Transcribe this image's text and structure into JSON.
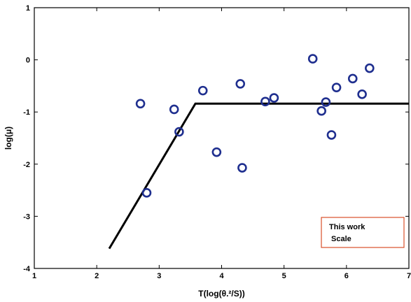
{
  "chart_data": {
    "type": "scatter",
    "xlabel": "T(log(θ.²/S))",
    "ylabel": "log(μ)",
    "xlim": [
      1,
      7
    ],
    "ylim": [
      -4,
      1
    ],
    "xticks": [
      "1",
      "2",
      "3",
      "4",
      "5",
      "6",
      "7"
    ],
    "yticks": [
      "1",
      "0",
      "-1",
      "-2",
      "-3",
      "-4"
    ],
    "xtick_values": [
      1,
      2,
      3,
      4,
      5,
      6,
      7
    ],
    "ytick_values": [
      1,
      0,
      -1,
      -2,
      -3,
      -4
    ],
    "grid": false,
    "legend": {
      "placement": "bottom-right",
      "lines": [
        "This work",
        "Scale"
      ]
    },
    "series": [
      {
        "kind": "scatter",
        "color": "#1f2f8f",
        "marker": "open-circle",
        "points": [
          {
            "x": 2.7,
            "y": -0.84
          },
          {
            "x": 2.8,
            "y": -2.55
          },
          {
            "x": 3.24,
            "y": -0.95
          },
          {
            "x": 3.32,
            "y": -1.38
          },
          {
            "x": 3.7,
            "y": -0.59
          },
          {
            "x": 3.92,
            "y": -1.77
          },
          {
            "x": 4.3,
            "y": -0.46
          },
          {
            "x": 4.33,
            "y": -2.07
          },
          {
            "x": 4.7,
            "y": -0.8
          },
          {
            "x": 4.84,
            "y": -0.73
          },
          {
            "x": 5.46,
            "y": 0.02
          },
          {
            "x": 5.6,
            "y": -0.98
          },
          {
            "x": 5.67,
            "y": -0.81
          },
          {
            "x": 5.76,
            "y": -1.44
          },
          {
            "x": 5.84,
            "y": -0.53
          },
          {
            "x": 6.1,
            "y": -0.36
          },
          {
            "x": 6.25,
            "y": -0.66
          },
          {
            "x": 6.37,
            "y": -0.16
          }
        ]
      },
      {
        "kind": "line",
        "color": "#000000",
        "points": [
          {
            "x": 2.2,
            "y": -3.62
          },
          {
            "x": 3.58,
            "y": -0.84
          },
          {
            "x": 7.0,
            "y": -0.84
          }
        ]
      }
    ]
  }
}
